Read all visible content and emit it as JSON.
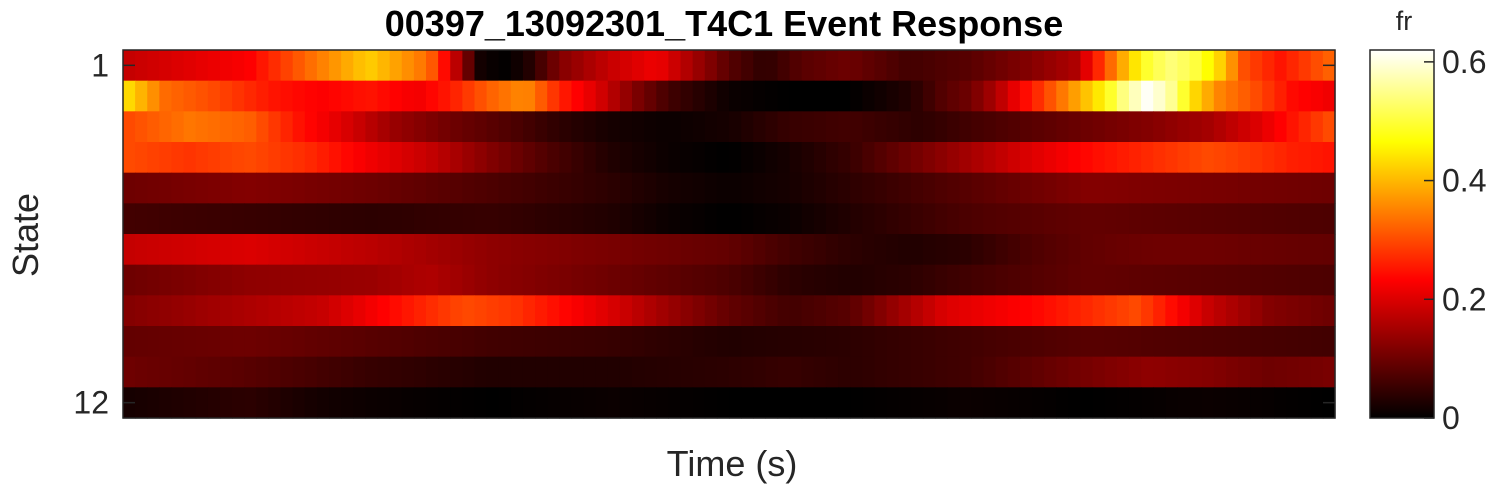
{
  "chart_data": {
    "type": "heatmap",
    "title": "00397_13092301_T4C1 Event Response",
    "xlabel": "Time (s)",
    "ylabel": "State",
    "y_tick_labels": [
      "1",
      "12"
    ],
    "colorbar": {
      "label": "fr",
      "range": [
        0,
        0.62
      ],
      "ticks": [
        0,
        0.2,
        0.4,
        0.6
      ],
      "tick_labels": [
        "0",
        "0.2",
        "0.4",
        "0.6"
      ],
      "colormap": "hot"
    },
    "grid": false,
    "rows": [
      {
        "state": 1,
        "keypoints": [
          [
            0,
            0.18
          ],
          [
            0.1,
            0.23
          ],
          [
            0.15,
            0.33
          ],
          [
            0.2,
            0.42
          ],
          [
            0.25,
            0.33
          ],
          [
            0.28,
            0.12
          ],
          [
            0.29,
            0.02
          ],
          [
            0.31,
            0.0
          ],
          [
            0.33,
            0.02
          ],
          [
            0.36,
            0.12
          ],
          [
            0.4,
            0.18
          ],
          [
            0.44,
            0.22
          ],
          [
            0.47,
            0.15
          ],
          [
            0.5,
            0.08
          ],
          [
            0.53,
            0.04
          ],
          [
            0.56,
            0.08
          ],
          [
            0.6,
            0.1
          ],
          [
            0.65,
            0.06
          ],
          [
            0.7,
            0.08
          ],
          [
            0.75,
            0.12
          ],
          [
            0.79,
            0.16
          ],
          [
            0.81,
            0.28
          ],
          [
            0.83,
            0.4
          ],
          [
            0.85,
            0.5
          ],
          [
            0.87,
            0.54
          ],
          [
            0.89,
            0.5
          ],
          [
            0.91,
            0.42
          ],
          [
            0.93,
            0.3
          ],
          [
            0.96,
            0.25
          ],
          [
            1.0,
            0.32
          ]
        ]
      },
      {
        "state": 2,
        "keypoints": [
          [
            0,
            0.43
          ],
          [
            0.03,
            0.33
          ],
          [
            0.07,
            0.3
          ],
          [
            0.12,
            0.25
          ],
          [
            0.16,
            0.23
          ],
          [
            0.2,
            0.25
          ],
          [
            0.24,
            0.22
          ],
          [
            0.27,
            0.26
          ],
          [
            0.3,
            0.32
          ],
          [
            0.33,
            0.36
          ],
          [
            0.36,
            0.26
          ],
          [
            0.39,
            0.2
          ],
          [
            0.42,
            0.12
          ],
          [
            0.45,
            0.06
          ],
          [
            0.5,
            0.01
          ],
          [
            0.55,
            0.0
          ],
          [
            0.6,
            0.0
          ],
          [
            0.65,
            0.03
          ],
          [
            0.68,
            0.08
          ],
          [
            0.7,
            0.1
          ],
          [
            0.72,
            0.15
          ],
          [
            0.74,
            0.22
          ],
          [
            0.76,
            0.28
          ],
          [
            0.78,
            0.35
          ],
          [
            0.81,
            0.45
          ],
          [
            0.83,
            0.55
          ],
          [
            0.85,
            0.62
          ],
          [
            0.87,
            0.55
          ],
          [
            0.89,
            0.42
          ],
          [
            0.91,
            0.35
          ],
          [
            0.94,
            0.3
          ],
          [
            0.97,
            0.24
          ],
          [
            1.0,
            0.22
          ]
        ]
      },
      {
        "state": 3,
        "keypoints": [
          [
            0,
            0.3
          ],
          [
            0.05,
            0.34
          ],
          [
            0.1,
            0.32
          ],
          [
            0.14,
            0.25
          ],
          [
            0.18,
            0.2
          ],
          [
            0.22,
            0.14
          ],
          [
            0.27,
            0.1
          ],
          [
            0.32,
            0.07
          ],
          [
            0.36,
            0.04
          ],
          [
            0.4,
            0.02
          ],
          [
            0.45,
            0.01
          ],
          [
            0.5,
            0.02
          ],
          [
            0.55,
            0.05
          ],
          [
            0.6,
            0.06
          ],
          [
            0.66,
            0.04
          ],
          [
            0.7,
            0.06
          ],
          [
            0.75,
            0.08
          ],
          [
            0.8,
            0.1
          ],
          [
            0.85,
            0.12
          ],
          [
            0.9,
            0.15
          ],
          [
            0.94,
            0.2
          ],
          [
            0.97,
            0.25
          ],
          [
            1.0,
            0.3
          ]
        ]
      },
      {
        "state": 4,
        "keypoints": [
          [
            0,
            0.3
          ],
          [
            0.05,
            0.28
          ],
          [
            0.1,
            0.3
          ],
          [
            0.15,
            0.27
          ],
          [
            0.2,
            0.22
          ],
          [
            0.25,
            0.18
          ],
          [
            0.3,
            0.12
          ],
          [
            0.35,
            0.07
          ],
          [
            0.4,
            0.03
          ],
          [
            0.45,
            0.01
          ],
          [
            0.5,
            0.0
          ],
          [
            0.55,
            0.02
          ],
          [
            0.6,
            0.05
          ],
          [
            0.65,
            0.1
          ],
          [
            0.7,
            0.15
          ],
          [
            0.75,
            0.2
          ],
          [
            0.8,
            0.24
          ],
          [
            0.85,
            0.27
          ],
          [
            0.9,
            0.3
          ],
          [
            0.94,
            0.28
          ],
          [
            0.97,
            0.26
          ],
          [
            1.0,
            0.25
          ]
        ]
      },
      {
        "state": 5,
        "keypoints": [
          [
            0,
            0.1
          ],
          [
            0.1,
            0.12
          ],
          [
            0.2,
            0.1
          ],
          [
            0.3,
            0.07
          ],
          [
            0.4,
            0.04
          ],
          [
            0.45,
            0.02
          ],
          [
            0.5,
            0.01
          ],
          [
            0.55,
            0.02
          ],
          [
            0.6,
            0.04
          ],
          [
            0.7,
            0.08
          ],
          [
            0.8,
            0.12
          ],
          [
            0.9,
            0.11
          ],
          [
            1.0,
            0.1
          ]
        ]
      },
      {
        "state": 6,
        "keypoints": [
          [
            0,
            0.06
          ],
          [
            0.1,
            0.05
          ],
          [
            0.2,
            0.04
          ],
          [
            0.3,
            0.05
          ],
          [
            0.4,
            0.03
          ],
          [
            0.45,
            0.01
          ],
          [
            0.5,
            0.0
          ],
          [
            0.55,
            0.01
          ],
          [
            0.6,
            0.03
          ],
          [
            0.7,
            0.07
          ],
          [
            0.8,
            0.09
          ],
          [
            0.9,
            0.08
          ],
          [
            1.0,
            0.07
          ]
        ]
      },
      {
        "state": 7,
        "keypoints": [
          [
            0,
            0.18
          ],
          [
            0.1,
            0.2
          ],
          [
            0.2,
            0.17
          ],
          [
            0.3,
            0.13
          ],
          [
            0.4,
            0.11
          ],
          [
            0.5,
            0.09
          ],
          [
            0.55,
            0.06
          ],
          [
            0.6,
            0.04
          ],
          [
            0.65,
            0.03
          ],
          [
            0.7,
            0.04
          ],
          [
            0.75,
            0.07
          ],
          [
            0.8,
            0.09
          ],
          [
            0.85,
            0.1
          ],
          [
            0.9,
            0.1
          ],
          [
            1.0,
            0.09
          ]
        ]
      },
      {
        "state": 8,
        "keypoints": [
          [
            0,
            0.1
          ],
          [
            0.1,
            0.13
          ],
          [
            0.2,
            0.14
          ],
          [
            0.25,
            0.16
          ],
          [
            0.3,
            0.13
          ],
          [
            0.4,
            0.1
          ],
          [
            0.5,
            0.07
          ],
          [
            0.55,
            0.04
          ],
          [
            0.6,
            0.03
          ],
          [
            0.65,
            0.04
          ],
          [
            0.7,
            0.06
          ],
          [
            0.8,
            0.09
          ],
          [
            0.9,
            0.08
          ],
          [
            1.0,
            0.07
          ]
        ]
      },
      {
        "state": 9,
        "keypoints": [
          [
            0,
            0.12
          ],
          [
            0.08,
            0.15
          ],
          [
            0.16,
            0.18
          ],
          [
            0.2,
            0.22
          ],
          [
            0.24,
            0.26
          ],
          [
            0.28,
            0.3
          ],
          [
            0.32,
            0.28
          ],
          [
            0.36,
            0.24
          ],
          [
            0.4,
            0.2
          ],
          [
            0.45,
            0.14
          ],
          [
            0.5,
            0.09
          ],
          [
            0.55,
            0.06
          ],
          [
            0.6,
            0.08
          ],
          [
            0.64,
            0.14
          ],
          [
            0.68,
            0.2
          ],
          [
            0.72,
            0.22
          ],
          [
            0.76,
            0.24
          ],
          [
            0.8,
            0.27
          ],
          [
            0.84,
            0.3
          ],
          [
            0.87,
            0.24
          ],
          [
            0.9,
            0.18
          ],
          [
            0.95,
            0.12
          ],
          [
            1.0,
            0.1
          ]
        ]
      },
      {
        "state": 10,
        "keypoints": [
          [
            0,
            0.09
          ],
          [
            0.1,
            0.1
          ],
          [
            0.2,
            0.08
          ],
          [
            0.3,
            0.06
          ],
          [
            0.4,
            0.05
          ],
          [
            0.5,
            0.03
          ],
          [
            0.6,
            0.04
          ],
          [
            0.7,
            0.06
          ],
          [
            0.8,
            0.08
          ],
          [
            0.9,
            0.07
          ],
          [
            1.0,
            0.06
          ]
        ]
      },
      {
        "state": 11,
        "keypoints": [
          [
            0,
            0.1
          ],
          [
            0.1,
            0.08
          ],
          [
            0.2,
            0.05
          ],
          [
            0.3,
            0.03
          ],
          [
            0.4,
            0.03
          ],
          [
            0.5,
            0.04
          ],
          [
            0.55,
            0.05
          ],
          [
            0.6,
            0.04
          ],
          [
            0.7,
            0.06
          ],
          [
            0.78,
            0.1
          ],
          [
            0.85,
            0.13
          ],
          [
            0.9,
            0.12
          ],
          [
            0.95,
            0.1
          ],
          [
            1.0,
            0.11
          ]
        ]
      },
      {
        "state": 12,
        "keypoints": [
          [
            0,
            0.02
          ],
          [
            0.05,
            0.03
          ],
          [
            0.1,
            0.04
          ],
          [
            0.15,
            0.02
          ],
          [
            0.2,
            0.01
          ],
          [
            0.3,
            0.0
          ],
          [
            0.4,
            0.01
          ],
          [
            0.5,
            0.0
          ],
          [
            0.6,
            0.0
          ],
          [
            0.7,
            0.01
          ],
          [
            0.8,
            0.0
          ],
          [
            0.9,
            0.01
          ],
          [
            1.0,
            0.0
          ]
        ]
      }
    ],
    "columns": 100
  }
}
